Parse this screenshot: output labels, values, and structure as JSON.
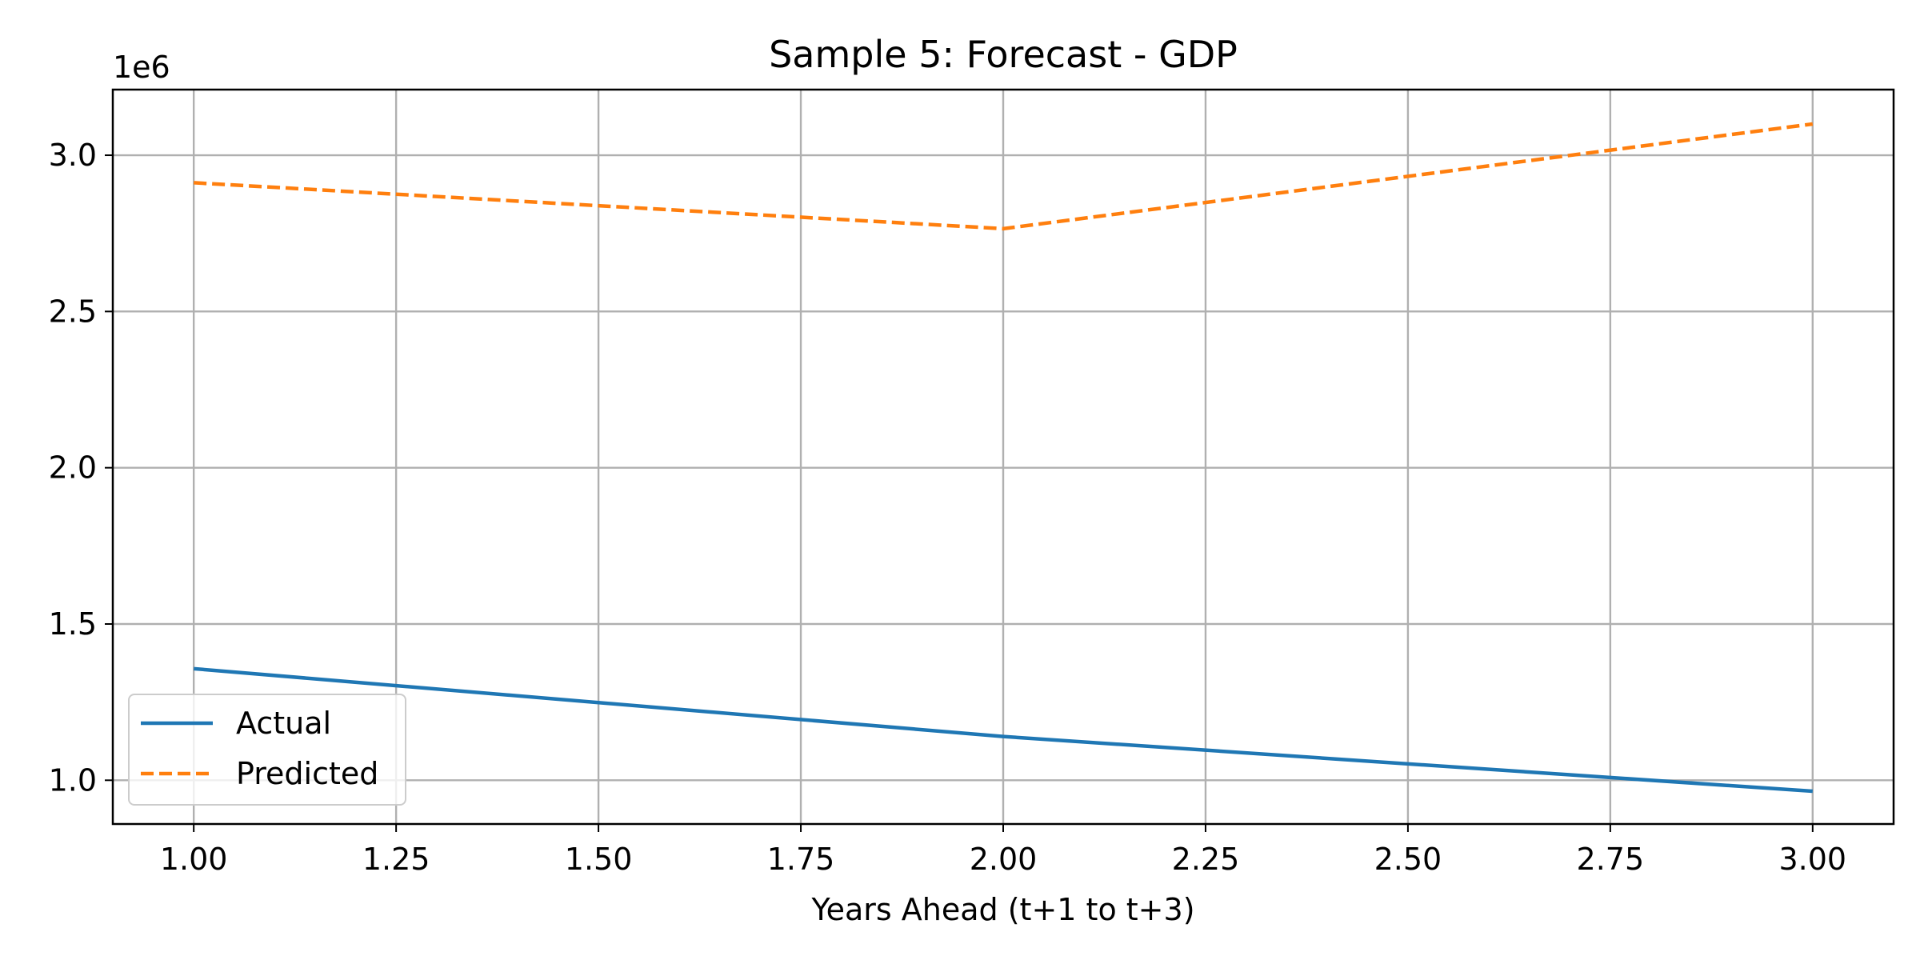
{
  "chart_data": {
    "type": "line",
    "title": "Sample 5: Forecast - GDP",
    "xlabel": "Years Ahead (t+1 to t+3)",
    "ylabel": "",
    "y_offset_label": "1e6",
    "y_multiplier": 1000000,
    "xlim": [
      0.9,
      3.1
    ],
    "ylim": [
      860000,
      3210000
    ],
    "x_ticks": [
      1.0,
      1.25,
      1.5,
      1.75,
      2.0,
      2.25,
      2.5,
      2.75,
      3.0
    ],
    "x_tick_labels": [
      "1.00",
      "1.25",
      "1.50",
      "1.75",
      "2.00",
      "2.25",
      "2.50",
      "2.75",
      "3.00"
    ],
    "y_ticks": [
      1000000,
      1500000,
      2000000,
      2500000,
      3000000
    ],
    "y_tick_labels": [
      "1.0",
      "1.5",
      "2.0",
      "2.5",
      "3.0"
    ],
    "grid": true,
    "legend_position": "lower-left",
    "x": [
      1,
      2,
      3
    ],
    "series": [
      {
        "name": "Actual",
        "values": [
          1357000,
          1140000,
          965000
        ],
        "color": "#1f77b4",
        "style": "solid"
      },
      {
        "name": "Predicted",
        "values": [
          2912000,
          2765000,
          3100000
        ],
        "color": "#ff7f0e",
        "style": "dashed"
      }
    ]
  }
}
